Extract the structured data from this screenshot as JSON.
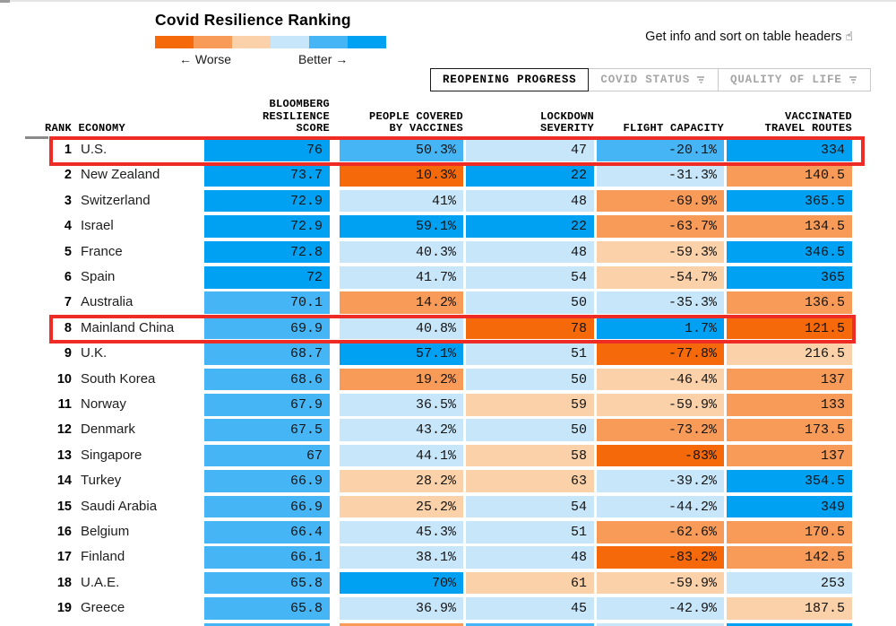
{
  "page": {
    "title": "Covid Resilience Ranking",
    "legend_worse": "← Worse",
    "legend_better": "Better →",
    "legend_colors": [
      "#f6690a",
      "#f89b58",
      "#fbd1a9",
      "#c8e6fa",
      "#46b5f5",
      "#00a1f2"
    ],
    "get_info": "Get info and sort on table headers",
    "hand_icon": "☝"
  },
  "tabs": [
    {
      "label": "REOPENING PROGRESS",
      "active": true,
      "has_funnel": false
    },
    {
      "label": "COVID STATUS",
      "active": false,
      "has_funnel": true
    },
    {
      "label": "QUALITY OF LIFE",
      "active": false,
      "has_funnel": true
    }
  ],
  "palette": {
    "b3": "#00a1f2",
    "b2": "#46b5f5",
    "b1": "#c8e6fa",
    "o1": "#fbd1a9",
    "o2": "#f89b58",
    "o3": "#f6690a",
    "highlight_red": "#ee2b24"
  },
  "chart_data": {
    "type": "table",
    "title": "Covid Resilience Ranking",
    "legend": {
      "worse": "← Worse",
      "better": "Better →",
      "scale": "diverging orange (worse) to blue (better), 6 buckets"
    },
    "column_headers": {
      "rank_economy": "RANK ECONOMY",
      "score": [
        "BLOOMBERG",
        "RESILIENCE",
        "SCORE"
      ],
      "vaccines": [
        "PEOPLE COVERED",
        "BY VACCINES"
      ],
      "lockdown": [
        "LOCKDOWN",
        "SEVERITY"
      ],
      "flight": [
        "FLIGHT CAPACITY"
      ],
      "routes": [
        "VACCINATED",
        "TRAVEL ROUTES"
      ]
    },
    "rows": [
      {
        "rank": "1",
        "economy": "U.S.",
        "highlighted": true,
        "cells": [
          {
            "v": "76",
            "c": "b3"
          },
          {
            "v": "50.3%",
            "c": "b2"
          },
          {
            "v": "47",
            "c": "b1"
          },
          {
            "v": "-20.1%",
            "c": "b2"
          },
          {
            "v": "334",
            "c": "b3"
          }
        ]
      },
      {
        "rank": "2",
        "economy": "New Zealand",
        "highlighted": false,
        "cells": [
          {
            "v": "73.7",
            "c": "b3"
          },
          {
            "v": "10.3%",
            "c": "o3"
          },
          {
            "v": "22",
            "c": "b3"
          },
          {
            "v": "-31.3%",
            "c": "b1"
          },
          {
            "v": "140.5",
            "c": "o2"
          }
        ]
      },
      {
        "rank": "3",
        "economy": "Switzerland",
        "highlighted": false,
        "cells": [
          {
            "v": "72.9",
            "c": "b3"
          },
          {
            "v": "41%",
            "c": "b1"
          },
          {
            "v": "48",
            "c": "b1"
          },
          {
            "v": "-69.9%",
            "c": "o2"
          },
          {
            "v": "365.5",
            "c": "b3"
          }
        ]
      },
      {
        "rank": "4",
        "economy": "Israel",
        "highlighted": false,
        "cells": [
          {
            "v": "72.9",
            "c": "b3"
          },
          {
            "v": "59.1%",
            "c": "b3"
          },
          {
            "v": "22",
            "c": "b3"
          },
          {
            "v": "-63.7%",
            "c": "o2"
          },
          {
            "v": "134.5",
            "c": "o2"
          }
        ]
      },
      {
        "rank": "5",
        "economy": "France",
        "highlighted": false,
        "cells": [
          {
            "v": "72.8",
            "c": "b3"
          },
          {
            "v": "40.3%",
            "c": "b1"
          },
          {
            "v": "48",
            "c": "b1"
          },
          {
            "v": "-59.3%",
            "c": "o1"
          },
          {
            "v": "346.5",
            "c": "b3"
          }
        ]
      },
      {
        "rank": "6",
        "economy": "Spain",
        "highlighted": false,
        "cells": [
          {
            "v": "72",
            "c": "b3"
          },
          {
            "v": "41.7%",
            "c": "b1"
          },
          {
            "v": "54",
            "c": "b1"
          },
          {
            "v": "-54.7%",
            "c": "o1"
          },
          {
            "v": "365",
            "c": "b3"
          }
        ]
      },
      {
        "rank": "7",
        "economy": "Australia",
        "highlighted": false,
        "cells": [
          {
            "v": "70.1",
            "c": "b2"
          },
          {
            "v": "14.2%",
            "c": "o2"
          },
          {
            "v": "50",
            "c": "b1"
          },
          {
            "v": "-35.3%",
            "c": "b1"
          },
          {
            "v": "136.5",
            "c": "o2"
          }
        ]
      },
      {
        "rank": "8",
        "economy": "Mainland China",
        "highlighted": true,
        "cells": [
          {
            "v": "69.9",
            "c": "b2"
          },
          {
            "v": "40.8%",
            "c": "b1"
          },
          {
            "v": "78",
            "c": "o3"
          },
          {
            "v": "1.7%",
            "c": "b3"
          },
          {
            "v": "121.5",
            "c": "o3"
          }
        ]
      },
      {
        "rank": "9",
        "economy": "U.K.",
        "highlighted": false,
        "cells": [
          {
            "v": "68.7",
            "c": "b2"
          },
          {
            "v": "57.1%",
            "c": "b3"
          },
          {
            "v": "51",
            "c": "b1"
          },
          {
            "v": "-77.8%",
            "c": "o3"
          },
          {
            "v": "216.5",
            "c": "o1"
          }
        ]
      },
      {
        "rank": "10",
        "economy": "South Korea",
        "highlighted": false,
        "cells": [
          {
            "v": "68.6",
            "c": "b2"
          },
          {
            "v": "19.2%",
            "c": "o2"
          },
          {
            "v": "50",
            "c": "b1"
          },
          {
            "v": "-46.4%",
            "c": "o1"
          },
          {
            "v": "137",
            "c": "o2"
          }
        ]
      },
      {
        "rank": "11",
        "economy": "Norway",
        "highlighted": false,
        "cells": [
          {
            "v": "67.9",
            "c": "b2"
          },
          {
            "v": "36.5%",
            "c": "b1"
          },
          {
            "v": "59",
            "c": "o1"
          },
          {
            "v": "-59.9%",
            "c": "o1"
          },
          {
            "v": "133",
            "c": "o2"
          }
        ]
      },
      {
        "rank": "12",
        "economy": "Denmark",
        "highlighted": false,
        "cells": [
          {
            "v": "67.5",
            "c": "b2"
          },
          {
            "v": "43.2%",
            "c": "b1"
          },
          {
            "v": "50",
            "c": "b1"
          },
          {
            "v": "-73.2%",
            "c": "o2"
          },
          {
            "v": "173.5",
            "c": "o2"
          }
        ]
      },
      {
        "rank": "13",
        "economy": "Singapore",
        "highlighted": false,
        "cells": [
          {
            "v": "67",
            "c": "b2"
          },
          {
            "v": "44.1%",
            "c": "b1"
          },
          {
            "v": "58",
            "c": "o1"
          },
          {
            "v": "-83%",
            "c": "o3"
          },
          {
            "v": "137",
            "c": "o2"
          }
        ]
      },
      {
        "rank": "14",
        "economy": "Turkey",
        "highlighted": false,
        "cells": [
          {
            "v": "66.9",
            "c": "b2"
          },
          {
            "v": "28.2%",
            "c": "o1"
          },
          {
            "v": "63",
            "c": "o1"
          },
          {
            "v": "-39.2%",
            "c": "b1"
          },
          {
            "v": "354.5",
            "c": "b3"
          }
        ]
      },
      {
        "rank": "15",
        "economy": "Saudi Arabia",
        "highlighted": false,
        "cells": [
          {
            "v": "66.9",
            "c": "b2"
          },
          {
            "v": "25.2%",
            "c": "o1"
          },
          {
            "v": "54",
            "c": "b1"
          },
          {
            "v": "-44.2%",
            "c": "b1"
          },
          {
            "v": "349",
            "c": "b3"
          }
        ]
      },
      {
        "rank": "16",
        "economy": "Belgium",
        "highlighted": false,
        "cells": [
          {
            "v": "66.4",
            "c": "b2"
          },
          {
            "v": "45.3%",
            "c": "b1"
          },
          {
            "v": "51",
            "c": "b1"
          },
          {
            "v": "-62.6%",
            "c": "o2"
          },
          {
            "v": "170.5",
            "c": "o2"
          }
        ]
      },
      {
        "rank": "17",
        "economy": "Finland",
        "highlighted": false,
        "cells": [
          {
            "v": "66.1",
            "c": "b2"
          },
          {
            "v": "38.1%",
            "c": "b1"
          },
          {
            "v": "48",
            "c": "b1"
          },
          {
            "v": "-83.2%",
            "c": "o3"
          },
          {
            "v": "142.5",
            "c": "o2"
          }
        ]
      },
      {
        "rank": "18",
        "economy": "U.A.E.",
        "highlighted": false,
        "cells": [
          {
            "v": "65.8",
            "c": "b2"
          },
          {
            "v": "70%",
            "c": "b3"
          },
          {
            "v": "61",
            "c": "o1"
          },
          {
            "v": "-59.9%",
            "c": "o1"
          },
          {
            "v": "253",
            "c": "b1"
          }
        ]
      },
      {
        "rank": "19",
        "economy": "Greece",
        "highlighted": false,
        "cells": [
          {
            "v": "65.8",
            "c": "b2"
          },
          {
            "v": "36.9%",
            "c": "b1"
          },
          {
            "v": "45",
            "c": "b1"
          },
          {
            "v": "-42.9%",
            "c": "b1"
          },
          {
            "v": "187.5",
            "c": "o1"
          }
        ]
      }
    ],
    "partial_row_colors": [
      "b2",
      "o2",
      "b2",
      "b1",
      "b3"
    ]
  }
}
